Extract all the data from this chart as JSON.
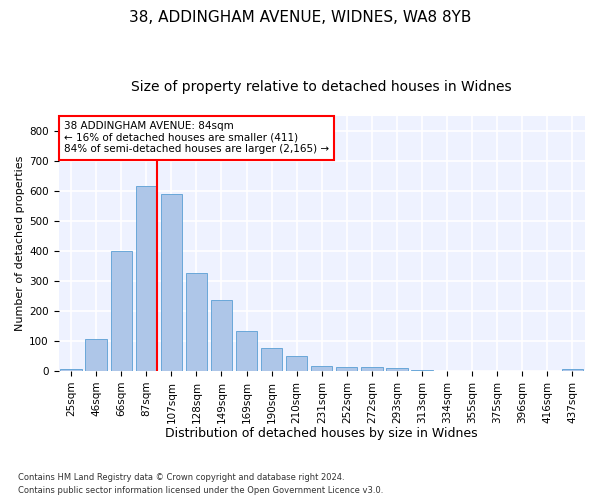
{
  "title1": "38, ADDINGHAM AVENUE, WIDNES, WA8 8YB",
  "title2": "Size of property relative to detached houses in Widnes",
  "xlabel": "Distribution of detached houses by size in Widnes",
  "ylabel": "Number of detached properties",
  "footnote1": "Contains HM Land Registry data © Crown copyright and database right 2024.",
  "footnote2": "Contains public sector information licensed under the Open Government Licence v3.0.",
  "categories": [
    "25sqm",
    "46sqm",
    "66sqm",
    "87sqm",
    "107sqm",
    "128sqm",
    "149sqm",
    "169sqm",
    "190sqm",
    "210sqm",
    "231sqm",
    "252sqm",
    "272sqm",
    "293sqm",
    "313sqm",
    "334sqm",
    "355sqm",
    "375sqm",
    "396sqm",
    "416sqm",
    "437sqm"
  ],
  "values": [
    5,
    107,
    400,
    615,
    590,
    328,
    237,
    134,
    76,
    50,
    18,
    13,
    13,
    10,
    4,
    0,
    0,
    0,
    0,
    0,
    7
  ],
  "bar_color": "#aec6e8",
  "bar_edge_color": "#5a9fd4",
  "red_line_x": 3.42,
  "annotation_line1": "38 ADDINGHAM AVENUE: 84sqm",
  "annotation_line2": "← 16% of detached houses are smaller (411)",
  "annotation_line3": "84% of semi-detached houses are larger (2,165) →",
  "annotation_box_color": "white",
  "annotation_box_edge_color": "red",
  "red_line_color": "red",
  "ylim": [
    0,
    850
  ],
  "yticks": [
    0,
    100,
    200,
    300,
    400,
    500,
    600,
    700,
    800
  ],
  "background_color": "#eef2ff",
  "grid_color": "white",
  "title1_fontsize": 11,
  "title2_fontsize": 10,
  "tick_fontsize": 7.5,
  "xlabel_fontsize": 9,
  "ylabel_fontsize": 8,
  "annotation_fontsize": 7.5,
  "footnote_fontsize": 6.0
}
